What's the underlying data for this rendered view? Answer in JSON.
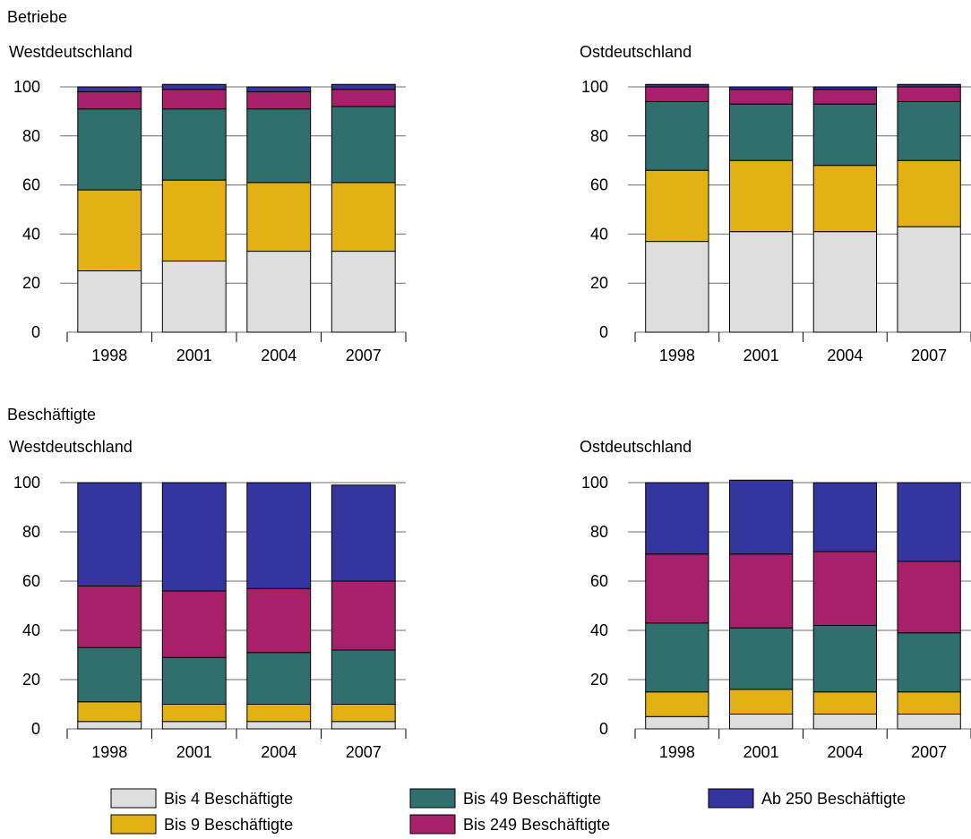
{
  "sections": [
    {
      "title": "Betriebe"
    },
    {
      "title": "Beschäftigte"
    }
  ],
  "colors": {
    "bis4": "#dedede",
    "bis9": "#e2b214",
    "bis49": "#2f6f6d",
    "bis249": "#a8206a",
    "ab250": "#3535a0"
  },
  "legend": [
    {
      "key": "bis4",
      "label": "Bis 4 Beschäftigte"
    },
    {
      "key": "bis49",
      "label": "Bis 49 Beschäftigte"
    },
    {
      "key": "ab250",
      "label": "Ab 250 Beschäftigte"
    },
    {
      "key": "bis9",
      "label": "Bis 9 Beschäftigte"
    },
    {
      "key": "bis249",
      "label": "Bis 249 Beschäftigte"
    }
  ],
  "chart_data": [
    {
      "type": "bar",
      "stacked": true,
      "section": "Betriebe",
      "title": "Westdeutschland",
      "categories": [
        "1998",
        "2001",
        "2004",
        "2007"
      ],
      "ylim": [
        0,
        100
      ],
      "yticks": [
        0,
        20,
        40,
        60,
        80,
        100
      ],
      "grid": true,
      "series": [
        {
          "key": "bis4",
          "name": "Bis 4 Beschäftigte",
          "values": [
            25,
            29,
            33,
            33
          ]
        },
        {
          "key": "bis9",
          "name": "Bis 9 Beschäftigte",
          "values": [
            33,
            33,
            28,
            28
          ]
        },
        {
          "key": "bis49",
          "name": "Bis 49 Beschäftigte",
          "values": [
            33,
            29,
            30,
            31
          ]
        },
        {
          "key": "bis249",
          "name": "Bis 249 Beschäftigte",
          "values": [
            7,
            8,
            7,
            7
          ]
        },
        {
          "key": "ab250",
          "name": "Ab 250 Beschäftigte",
          "values": [
            2,
            2,
            2,
            2
          ]
        }
      ]
    },
    {
      "type": "bar",
      "stacked": true,
      "section": "Betriebe",
      "title": "Ostdeutschland",
      "categories": [
        "1998",
        "2001",
        "2004",
        "2007"
      ],
      "ylim": [
        0,
        100
      ],
      "yticks": [
        0,
        20,
        40,
        60,
        80,
        100
      ],
      "grid": true,
      "series": [
        {
          "key": "bis4",
          "name": "Bis 4 Beschäftigte",
          "values": [
            37,
            41,
            41,
            43
          ]
        },
        {
          "key": "bis9",
          "name": "Bis 9 Beschäftigte",
          "values": [
            29,
            29,
            27,
            27
          ]
        },
        {
          "key": "bis49",
          "name": "Bis 49 Beschäftigte",
          "values": [
            28,
            23,
            25,
            24
          ]
        },
        {
          "key": "bis249",
          "name": "Bis 249 Beschäftigte",
          "values": [
            6,
            6,
            6,
            6
          ]
        },
        {
          "key": "ab250",
          "name": "Ab 250 Beschäftigte",
          "values": [
            1,
            1,
            1,
            1
          ]
        }
      ]
    },
    {
      "type": "bar",
      "stacked": true,
      "section": "Beschäftigte",
      "title": "Westdeutschland",
      "categories": [
        "1998",
        "2001",
        "2004",
        "2007"
      ],
      "ylim": [
        0,
        100
      ],
      "yticks": [
        0,
        20,
        40,
        60,
        80,
        100
      ],
      "grid": true,
      "series": [
        {
          "key": "bis4",
          "name": "Bis 4 Beschäftigte",
          "values": [
            3,
            3,
            3,
            3
          ]
        },
        {
          "key": "bis9",
          "name": "Bis 9 Beschäftigte",
          "values": [
            8,
            7,
            7,
            7
          ]
        },
        {
          "key": "bis49",
          "name": "Bis 49 Beschäftigte",
          "values": [
            22,
            19,
            21,
            22
          ]
        },
        {
          "key": "bis249",
          "name": "Bis 249 Beschäftigte",
          "values": [
            25,
            27,
            26,
            28
          ]
        },
        {
          "key": "ab250",
          "name": "Ab 250 Beschäftigte",
          "values": [
            42,
            44,
            43,
            39
          ]
        }
      ]
    },
    {
      "type": "bar",
      "stacked": true,
      "section": "Beschäftigte",
      "title": "Ostdeutschland",
      "categories": [
        "1998",
        "2001",
        "2004",
        "2007"
      ],
      "ylim": [
        0,
        100
      ],
      "yticks": [
        0,
        20,
        40,
        60,
        80,
        100
      ],
      "grid": true,
      "series": [
        {
          "key": "bis4",
          "name": "Bis 4 Beschäftigte",
          "values": [
            5,
            6,
            6,
            6
          ]
        },
        {
          "key": "bis9",
          "name": "Bis 9 Beschäftigte",
          "values": [
            10,
            10,
            9,
            9
          ]
        },
        {
          "key": "bis49",
          "name": "Bis 49 Beschäftigte",
          "values": [
            28,
            25,
            27,
            24
          ]
        },
        {
          "key": "bis249",
          "name": "Bis 249 Beschäftigte",
          "values": [
            28,
            30,
            30,
            29
          ]
        },
        {
          "key": "ab250",
          "name": "Ab 250 Beschäftigte",
          "values": [
            29,
            30,
            28,
            32
          ]
        }
      ]
    }
  ]
}
